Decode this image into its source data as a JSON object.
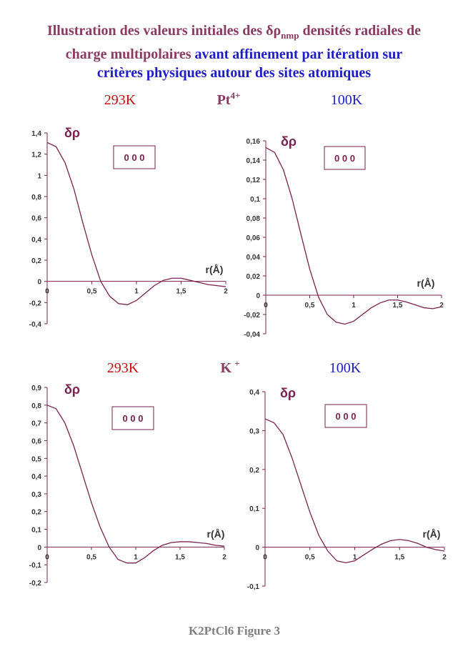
{
  "title": {
    "line1": "Illustration des valeurs initiales des δρ",
    "subscript": "nmp",
    "line1_end": "densités radiales de",
    "line2": "charge multipolaires",
    "line2_end": "avant affinement par itération sur",
    "line3": "critères physiques autour des sites atomiques"
  },
  "sections": [
    {
      "atom": "Pt",
      "charge": "4+"
    },
    {
      "atom": "K",
      "charge": "+"
    }
  ],
  "footer": "K2PtCl6 Figure 3",
  "chart_data": [
    {
      "type": "line",
      "subtitle": "293K",
      "y_label": "δρ",
      "x_label": "r(Å)",
      "annotation": "0 0 0",
      "color": "#7a2350",
      "x": [
        0,
        0.1,
        0.2,
        0.3,
        0.4,
        0.5,
        0.6,
        0.7,
        0.8,
        0.9,
        1.0,
        1.1,
        1.2,
        1.3,
        1.4,
        1.5,
        1.6,
        1.7,
        1.8,
        1.9,
        2.0
      ],
      "values": [
        1.31,
        1.27,
        1.12,
        0.87,
        0.55,
        0.25,
        0.0,
        -0.14,
        -0.21,
        -0.22,
        -0.18,
        -0.11,
        -0.04,
        0.01,
        0.03,
        0.03,
        0.01,
        -0.01,
        -0.03,
        -0.04,
        -0.05
      ],
      "xlim": [
        0,
        2
      ],
      "xticks": [
        0,
        {
          "value": 0.5,
          "label": "0,5"
        },
        1,
        {
          "value": 1.5,
          "label": "1,5"
        },
        2
      ],
      "ylim": [
        -0.4,
        1.4
      ],
      "yticks": [
        {
          "value": -0.4,
          "label": "-0,4"
        },
        {
          "value": -0.2,
          "label": "-0,2"
        },
        0,
        {
          "value": 0.2,
          "label": "0,2"
        },
        {
          "value": 0.4,
          "label": "0,4"
        },
        {
          "value": 0.6,
          "label": "0,6"
        },
        {
          "value": 0.8,
          "label": "0,8"
        },
        1,
        {
          "value": 1.2,
          "label": "1,2"
        },
        {
          "value": 1.4,
          "label": "1,4"
        }
      ]
    },
    {
      "type": "line",
      "subtitle": "100K",
      "y_label": "δρ",
      "x_label": "r(Å)",
      "annotation": "0 0 0",
      "color": "#7a2350",
      "x": [
        0,
        0.1,
        0.2,
        0.3,
        0.4,
        0.5,
        0.6,
        0.7,
        0.8,
        0.9,
        1.0,
        1.1,
        1.2,
        1.3,
        1.4,
        1.5,
        1.6,
        1.7,
        1.8,
        1.9,
        2.0
      ],
      "values": [
        0.153,
        0.148,
        0.13,
        0.1,
        0.063,
        0.027,
        -0.002,
        -0.02,
        -0.028,
        -0.03,
        -0.027,
        -0.02,
        -0.013,
        -0.008,
        -0.005,
        -0.005,
        -0.007,
        -0.01,
        -0.013,
        -0.014,
        -0.012
      ],
      "xlim": [
        0,
        2
      ],
      "xticks": [
        0,
        {
          "value": 0.5,
          "label": "0,5"
        },
        1,
        {
          "value": 1.5,
          "label": "1,5"
        },
        2
      ],
      "ylim": [
        -0.04,
        0.16
      ],
      "yticks": [
        {
          "value": -0.04,
          "label": "-0,04"
        },
        {
          "value": -0.02,
          "label": "-0,02"
        },
        0,
        {
          "value": 0.02,
          "label": "0,02"
        },
        {
          "value": 0.04,
          "label": "0,04"
        },
        {
          "value": 0.06,
          "label": "0,06"
        },
        {
          "value": 0.08,
          "label": "0,08"
        },
        {
          "value": 0.1,
          "label": "0,1"
        },
        {
          "value": 0.12,
          "label": "0,12"
        },
        {
          "value": 0.14,
          "label": "0,14"
        },
        {
          "value": 0.16,
          "label": "0,16"
        }
      ]
    },
    {
      "type": "line",
      "subtitle": "293K",
      "y_label": "δρ",
      "x_label": "r(Å)",
      "annotation": "0 0 0",
      "color": "#7a2350",
      "x": [
        0,
        0.1,
        0.2,
        0.3,
        0.4,
        0.5,
        0.6,
        0.7,
        0.8,
        0.9,
        1.0,
        1.1,
        1.2,
        1.3,
        1.4,
        1.5,
        1.6,
        1.7,
        1.8,
        1.9,
        2.0
      ],
      "values": [
        0.8,
        0.78,
        0.7,
        0.57,
        0.41,
        0.25,
        0.11,
        0.0,
        -0.07,
        -0.09,
        -0.09,
        -0.06,
        -0.02,
        0.01,
        0.025,
        0.03,
        0.03,
        0.025,
        0.02,
        0.01,
        0.005
      ],
      "xlim": [
        0,
        2
      ],
      "xticks": [
        0,
        {
          "value": 0.5,
          "label": "0,5"
        },
        1,
        {
          "value": 1.5,
          "label": "1,5"
        },
        2
      ],
      "ylim": [
        -0.2,
        0.9
      ],
      "yticks": [
        {
          "value": -0.2,
          "label": "-0,2"
        },
        {
          "value": -0.1,
          "label": "-0,1"
        },
        0,
        {
          "value": 0.1,
          "label": "0,1"
        },
        {
          "value": 0.2,
          "label": "0,2"
        },
        {
          "value": 0.3,
          "label": "0,3"
        },
        {
          "value": 0.4,
          "label": "0,4"
        },
        {
          "value": 0.5,
          "label": "0,5"
        },
        {
          "value": 0.6,
          "label": "0,6"
        },
        {
          "value": 0.7,
          "label": "0,7"
        },
        {
          "value": 0.8,
          "label": "0,8"
        },
        {
          "value": 0.9,
          "label": "0,9"
        }
      ]
    },
    {
      "type": "line",
      "subtitle": "100K",
      "y_label": "δρ",
      "x_label": "r(Å)",
      "annotation": "0 0 0",
      "color": "#7a2350",
      "x": [
        0,
        0.1,
        0.2,
        0.3,
        0.4,
        0.5,
        0.6,
        0.7,
        0.8,
        0.9,
        1.0,
        1.1,
        1.2,
        1.3,
        1.4,
        1.5,
        1.6,
        1.7,
        1.8,
        1.9,
        2.0
      ],
      "values": [
        0.33,
        0.32,
        0.29,
        0.23,
        0.16,
        0.09,
        0.03,
        -0.01,
        -0.035,
        -0.04,
        -0.035,
        -0.02,
        -0.005,
        0.008,
        0.017,
        0.02,
        0.017,
        0.01,
        0.0,
        -0.006,
        -0.01
      ],
      "xlim": [
        0,
        2
      ],
      "xticks": [
        0,
        {
          "value": 0.5,
          "label": "0,5"
        },
        1,
        {
          "value": 1.5,
          "label": "1,5"
        },
        2
      ],
      "ylim": [
        -0.1,
        0.4
      ],
      "yticks": [
        {
          "value": -0.1,
          "label": "-0,1"
        },
        0,
        {
          "value": 0.1,
          "label": "0,1"
        },
        {
          "value": 0.2,
          "label": "0,2"
        },
        {
          "value": 0.3,
          "label": "0,3"
        },
        {
          "value": 0.4,
          "label": "0,4"
        }
      ]
    }
  ]
}
